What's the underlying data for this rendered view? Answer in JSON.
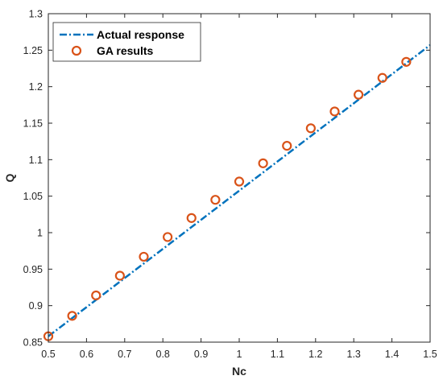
{
  "chart_data": {
    "type": "line",
    "title": "",
    "xlabel": "Nc",
    "ylabel": "Q",
    "xlim": [
      0.5,
      1.5
    ],
    "ylim": [
      0.85,
      1.3
    ],
    "xticks": [
      0.5,
      0.6,
      0.7,
      0.8,
      0.9,
      1,
      1.1,
      1.2,
      1.3,
      1.4,
      1.5
    ],
    "xtick_labels": [
      "0.5",
      "0.6",
      "0.7",
      "0.8",
      "0.9",
      "1",
      "1.1",
      "1.2",
      "1.3",
      "1.4",
      "1.5"
    ],
    "yticks": [
      0.85,
      0.9,
      0.95,
      1,
      1.05,
      1.1,
      1.15,
      1.2,
      1.25,
      1.3
    ],
    "ytick_labels": [
      "0.85",
      "0.9",
      "0.95",
      "1",
      "1.05",
      "1.1",
      "1.15",
      "1.2",
      "1.25",
      "1.3"
    ],
    "grid": false,
    "legend_position": "top-left",
    "series": [
      {
        "name": "Actual response",
        "style": "dash-dot",
        "color": "#0072BD",
        "x": [
          0.5,
          1.5
        ],
        "y": [
          0.858,
          1.257
        ]
      },
      {
        "name": "GA results",
        "style": "circle-markers",
        "color": "#D95319",
        "x": [
          0.5,
          0.5625,
          0.625,
          0.6875,
          0.75,
          0.8125,
          0.875,
          0.9375,
          1.0,
          1.0625,
          1.125,
          1.1875,
          1.25,
          1.3125,
          1.375,
          1.4375
        ],
        "y": [
          0.858,
          0.886,
          0.914,
          0.941,
          0.967,
          0.994,
          1.02,
          1.045,
          1.07,
          1.095,
          1.119,
          1.143,
          1.166,
          1.189,
          1.212,
          1.234
        ]
      }
    ]
  }
}
